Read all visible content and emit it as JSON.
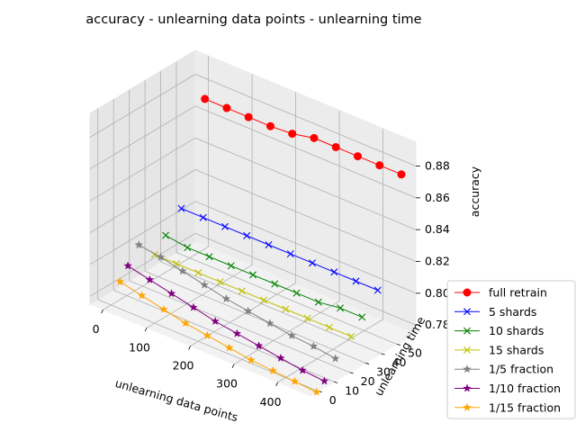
{
  "chart_data": {
    "type": "line",
    "projection": "3d",
    "title": "accuracy - unlearning data points - unlearning time",
    "xlabel": "unlearning data points",
    "ylabel": "unlearning time",
    "zlabel": "accuracy",
    "x_ticks": [
      "0",
      "100",
      "200",
      "300",
      "400"
    ],
    "y_ticks": [
      "0",
      "10",
      "20",
      "30",
      "40",
      "50"
    ],
    "z_ticks": [
      "0.78",
      "0.80",
      "0.82",
      "0.84",
      "0.86",
      "0.88"
    ],
    "xlim": [
      -30,
      475
    ],
    "ylim": [
      -5,
      62
    ],
    "zlim": [
      0.775,
      0.895
    ],
    "grid": true,
    "legend_position": "lower-right",
    "x": [
      10,
      60,
      110,
      160,
      210,
      260,
      310,
      360,
      410,
      460
    ],
    "series": [
      {
        "name": "full retrain",
        "color": "#ff0000",
        "marker": "circle",
        "y": [
          57,
          57,
          57,
          57,
          57,
          57,
          57,
          57,
          57,
          57
        ],
        "z": [
          0.872,
          0.872,
          0.872,
          0.872,
          0.873,
          0.876,
          0.876,
          0.876,
          0.876,
          0.876
        ]
      },
      {
        "name": "5 shards",
        "color": "#0000ff",
        "marker": "x",
        "y": [
          42,
          42,
          42,
          42,
          42,
          42,
          42,
          42,
          42,
          42
        ],
        "z": [
          0.812,
          0.812,
          0.812,
          0.812,
          0.812,
          0.812,
          0.812,
          0.812,
          0.812,
          0.812
        ]
      },
      {
        "name": "10 shards",
        "color": "#008000",
        "marker": "x",
        "y": [
          32,
          32,
          32,
          32,
          32,
          32,
          32,
          32,
          32,
          32
        ],
        "z": [
          0.801,
          0.799,
          0.799,
          0.799,
          0.799,
          0.799,
          0.799,
          0.799,
          0.801,
          0.801
        ]
      },
      {
        "name": "15 shards",
        "color": "#bfbf00",
        "marker": "x",
        "y": [
          25,
          25,
          25,
          25,
          25,
          25,
          25,
          25,
          25,
          25
        ],
        "z": [
          0.793,
          0.793,
          0.793,
          0.793,
          0.793,
          0.793,
          0.793,
          0.793,
          0.793,
          0.793
        ]
      },
      {
        "name": "1/5 fraction",
        "color": "#808080",
        "marker": "star",
        "y": [
          15,
          15,
          15,
          15,
          15,
          15,
          15,
          15,
          15,
          15
        ],
        "z": [
          0.805,
          0.803,
          0.8,
          0.797,
          0.794,
          0.792,
          0.79,
          0.788,
          0.787,
          0.785
        ]
      },
      {
        "name": "1/10 fraction",
        "color": "#800080",
        "marker": "star",
        "y": [
          8,
          8,
          8,
          8,
          8,
          8,
          8,
          8,
          8,
          8
        ],
        "z": [
          0.796,
          0.793,
          0.79,
          0.787,
          0.784,
          0.782,
          0.78,
          0.778,
          0.776,
          0.775
        ]
      },
      {
        "name": "1/15 fraction",
        "color": "#ffa500",
        "marker": "star",
        "y": [
          3,
          3,
          3,
          3,
          3,
          3,
          3,
          3,
          3,
          3
        ],
        "z": [
          0.789,
          0.786,
          0.783,
          0.78,
          0.778,
          0.776,
          0.774,
          0.773,
          0.772,
          0.771
        ]
      }
    ]
  }
}
